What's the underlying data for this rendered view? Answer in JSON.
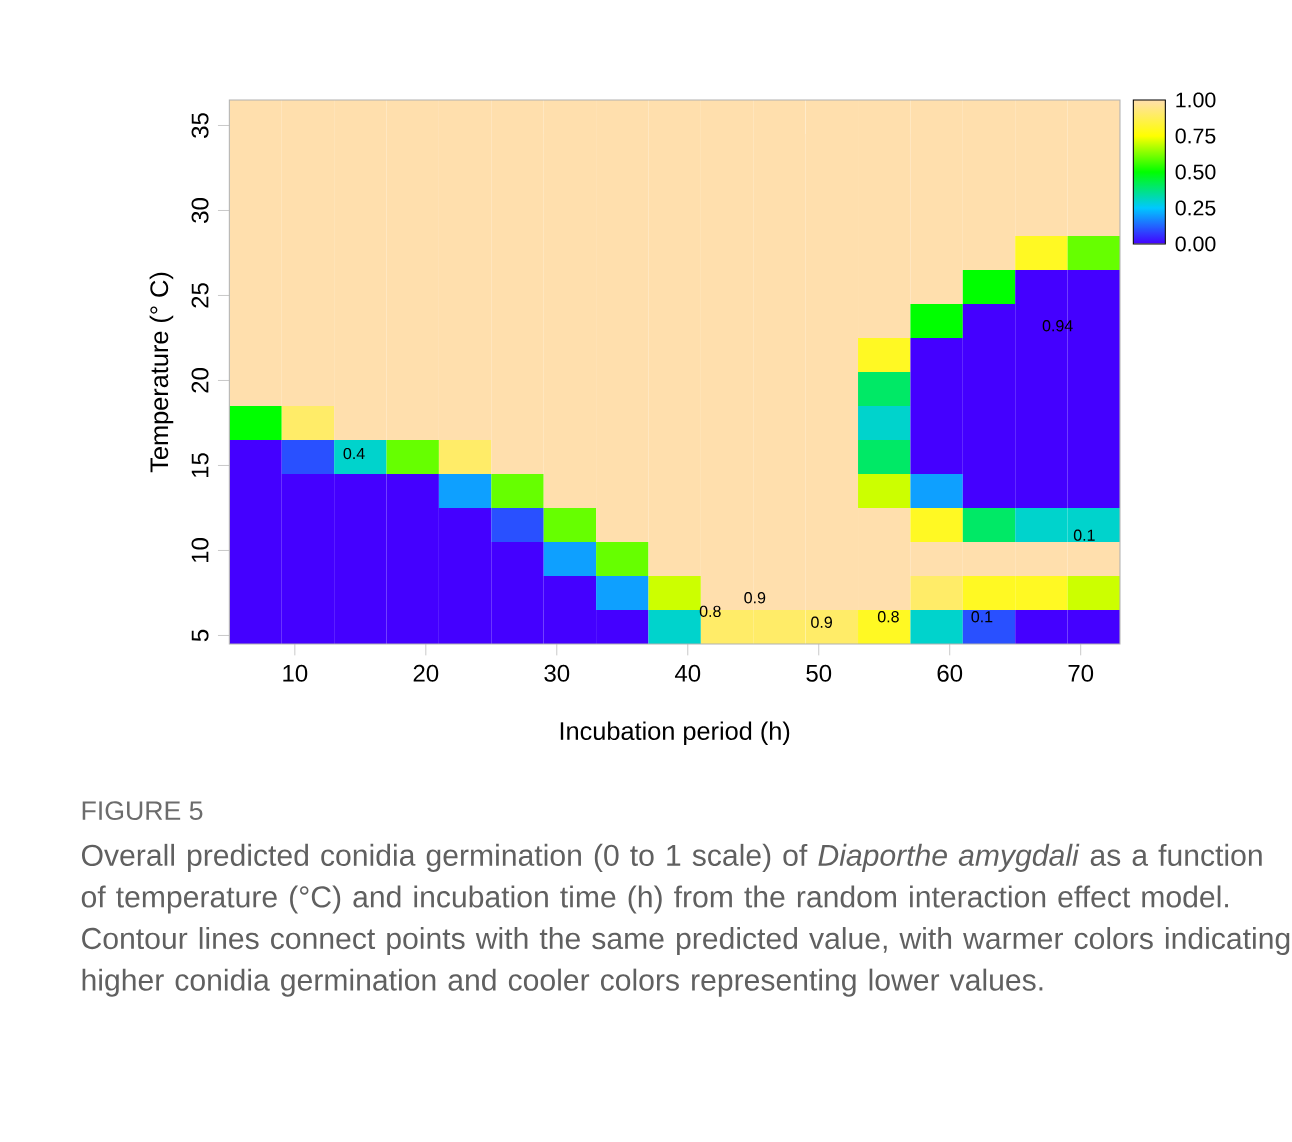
{
  "chart_data": {
    "type": "heatmap",
    "xlabel": "Incubation period (h)",
    "ylabel": "Temperature (° C)",
    "x": [
      7,
      11,
      15,
      19,
      23,
      27,
      31,
      35,
      39,
      43,
      47,
      51,
      55,
      59,
      63,
      67,
      71
    ],
    "y": [
      35.5,
      33.5,
      31.5,
      29.5,
      27.5,
      25.5,
      23.5,
      21.5,
      19.5,
      17.5,
      15.5,
      13.5,
      11.5,
      9.5,
      7.5,
      5.5
    ],
    "cells": [
      [
        1,
        1,
        1,
        1,
        1,
        1,
        1,
        1,
        1,
        1,
        1,
        1,
        1,
        1,
        1,
        1,
        1
      ],
      [
        1,
        1,
        1,
        1,
        1,
        1,
        1,
        1,
        1,
        1,
        1,
        1,
        1,
        1,
        1,
        1,
        1
      ],
      [
        1,
        1,
        1,
        1,
        1,
        1,
        1,
        1,
        1,
        1,
        1,
        1,
        1,
        1,
        1,
        1,
        1
      ],
      [
        1,
        1,
        1,
        1,
        1,
        1,
        1,
        1,
        1,
        1,
        1,
        1,
        1,
        1,
        1,
        1,
        1
      ],
      [
        1,
        1,
        1,
        1,
        1,
        1,
        1,
        1,
        1,
        1,
        1,
        1,
        1,
        1,
        1,
        0.8,
        0.6
      ],
      [
        1,
        1,
        1,
        1,
        1,
        1,
        1,
        1,
        1,
        1,
        1,
        1,
        1,
        1,
        0.5,
        0,
        0
      ],
      [
        1,
        1,
        1,
        1,
        1,
        1,
        1,
        1,
        1,
        1,
        1,
        1,
        1,
        0.5,
        0,
        0,
        0
      ],
      [
        1,
        1,
        1,
        1,
        1,
        1,
        1,
        1,
        1,
        1,
        1,
        1,
        0.8,
        0,
        0,
        0,
        0
      ],
      [
        1,
        1,
        1,
        1,
        1,
        1,
        1,
        1,
        1,
        1,
        1,
        1,
        0.4,
        0,
        0,
        0,
        0
      ],
      [
        0.5,
        0.9,
        1,
        1,
        1,
        1,
        1,
        1,
        1,
        1,
        1,
        1,
        0.3,
        0,
        0,
        0,
        0
      ],
      [
        0,
        0.1,
        0.3,
        0.6,
        0.9,
        1,
        1,
        1,
        1,
        1,
        1,
        1,
        0.4,
        0,
        0,
        0,
        0
      ],
      [
        0,
        0,
        0,
        0,
        0.2,
        0.6,
        1,
        1,
        1,
        1,
        1,
        1,
        0.7,
        0.2,
        0,
        0,
        0
      ],
      [
        0,
        0,
        0,
        0,
        0,
        0.1,
        0.6,
        1,
        1,
        1,
        1,
        1,
        1,
        0.8,
        0.4,
        0.3,
        0.3
      ],
      [
        0,
        0,
        0,
        0,
        0,
        0,
        0.2,
        0.6,
        1,
        1,
        1,
        1,
        1,
        1,
        1,
        1,
        1
      ],
      [
        0,
        0,
        0,
        0,
        0,
        0,
        0,
        0.2,
        0.7,
        1,
        1,
        1,
        1,
        0.9,
        0.8,
        0.8,
        0.7
      ],
      [
        0,
        0,
        0,
        0,
        0,
        0,
        0,
        0,
        0.3,
        0.9,
        0.9,
        0.9,
        0.8,
        0.3,
        0.1,
        0,
        0
      ]
    ],
    "colors": [
      "#4400ff",
      "#00c8ff",
      "#00ff00",
      "#ffff00",
      "#ffdfad"
    ],
    "xlim": [
      5,
      73
    ],
    "ylim": [
      4.5,
      36.5
    ],
    "xticks": [
      10,
      20,
      30,
      40,
      50,
      60,
      70
    ],
    "yticks": [
      5,
      10,
      15,
      20,
      25,
      30,
      35
    ],
    "clim": [
      0,
      1
    ],
    "cticks": [
      {
        "value": 0,
        "label": "0.00"
      },
      {
        "value": 0.25,
        "label": "0.25"
      },
      {
        "value": 0.5,
        "label": "0.50"
      },
      {
        "value": 0.75,
        "label": "0.75"
      },
      {
        "value": 1,
        "label": "1.00"
      }
    ],
    "annotations": [
      "0.8",
      "0.9",
      "0.9",
      "0.8",
      "0.1",
      "0.1",
      "0.94",
      "0.4",
      "FIGURE 5",
      "Overall predicted conidia germination (0 to 1 scale) of *Diaporthe amygdali* as a function of temperature (°C) and incubation time (h) from the random interaction effect model. Contour lines connect points with the same predicted value, with warmer colors indicating higher conidia germination and cooler colors representing lower values."
    ]
  }
}
